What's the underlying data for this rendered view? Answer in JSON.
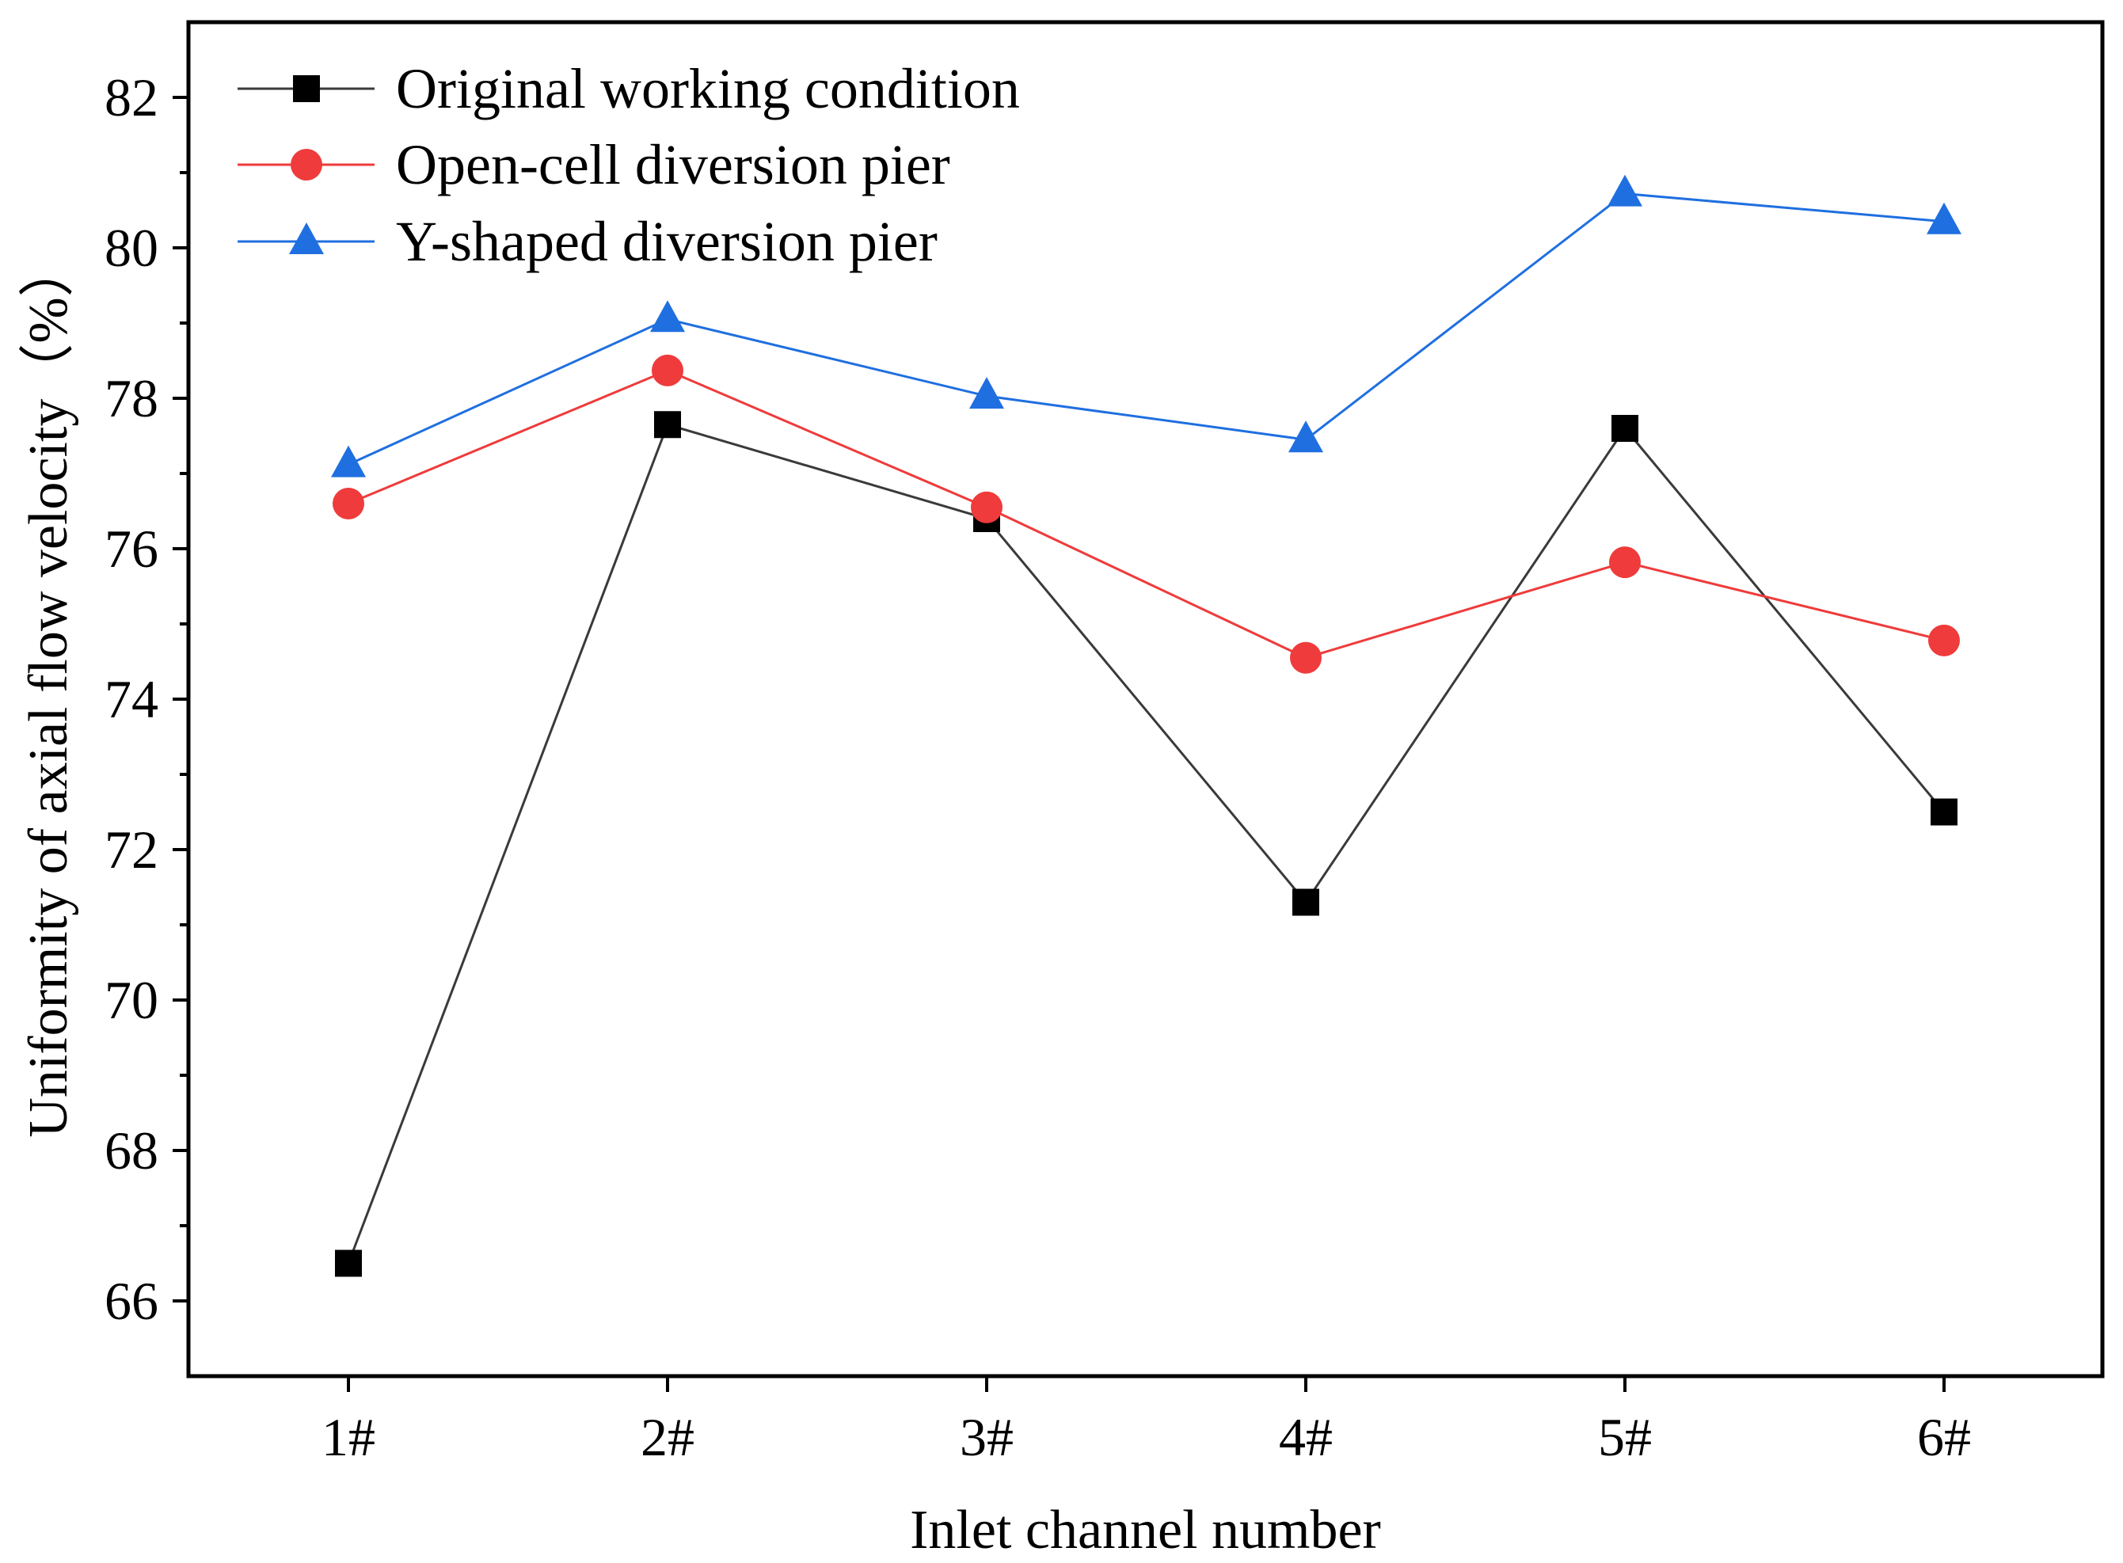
{
  "chart_data": {
    "type": "line",
    "title": "",
    "xlabel": "Inlet channel number",
    "ylabel": "Uniformity of axial flow velocity（%）",
    "categories": [
      "1#",
      "2#",
      "3#",
      "4#",
      "5#",
      "6#"
    ],
    "ylim": [
      65,
      83
    ],
    "yticks": [
      66,
      68,
      70,
      72,
      74,
      76,
      78,
      80,
      82
    ],
    "yticks_minor": [
      67,
      69,
      71,
      73,
      75,
      77,
      79,
      81
    ],
    "grid": false,
    "legend_position": "top-left",
    "series": [
      {
        "name": "Original working condition",
        "marker": "square",
        "color": "#000000",
        "line_color": "#3a3a3a",
        "values": [
          66.5,
          77.65,
          76.4,
          71.3,
          77.6,
          72.5
        ]
      },
      {
        "name": "Open-cell diversion pier",
        "marker": "circle",
        "color": "#ef3b3b",
        "line_color": "#ef3b3b",
        "values": [
          76.6,
          78.37,
          76.55,
          74.55,
          75.82,
          74.78
        ]
      },
      {
        "name": "Y-shaped diversion pier",
        "marker": "triangle",
        "color": "#1f6fe0",
        "line_color": "#1f6fe0",
        "values": [
          77.12,
          79.05,
          78.03,
          77.45,
          80.72,
          80.35
        ]
      }
    ]
  }
}
